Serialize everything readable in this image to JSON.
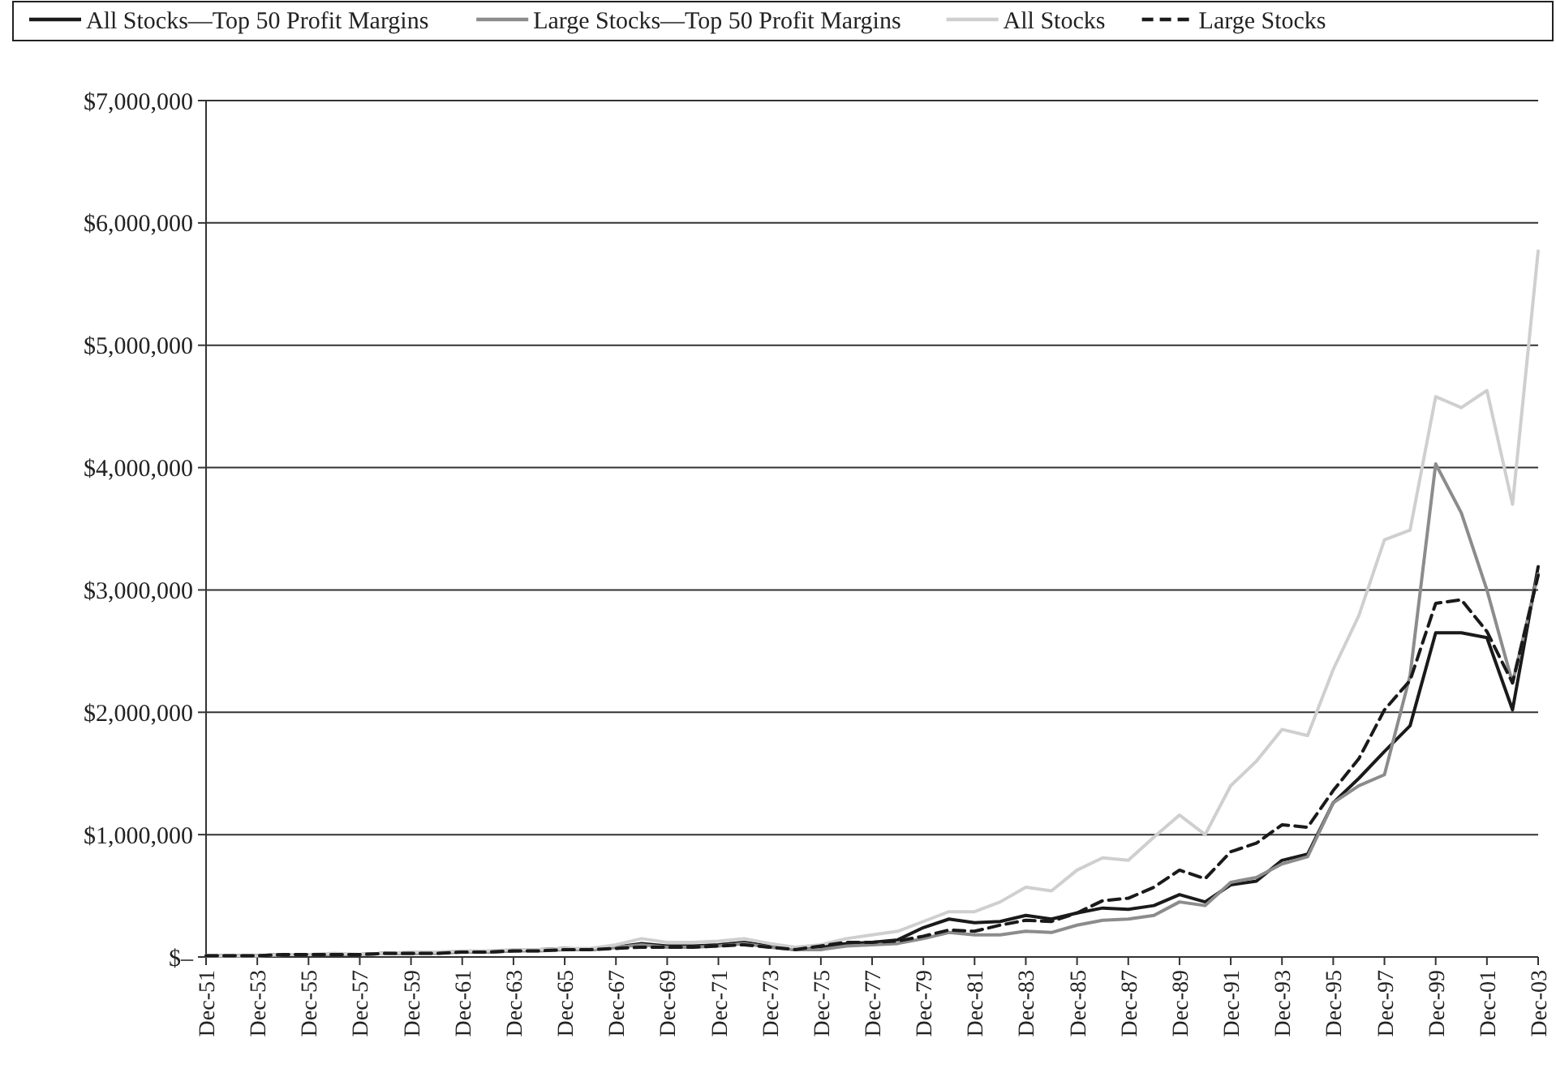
{
  "chart_data": {
    "type": "line",
    "categories": [
      "Dec-51",
      null,
      "Dec-53",
      null,
      "Dec-55",
      null,
      "Dec-57",
      null,
      "Dec-59",
      null,
      "Dec-61",
      null,
      "Dec-63",
      null,
      "Dec-65",
      null,
      "Dec-67",
      null,
      "Dec-69",
      null,
      "Dec-71",
      null,
      "Dec-73",
      null,
      "Dec-75",
      null,
      "Dec-77",
      null,
      "Dec-79",
      null,
      "Dec-81",
      null,
      "Dec-83",
      null,
      "Dec-85",
      null,
      "Dec-87",
      null,
      "Dec-89",
      null,
      "Dec-91",
      null,
      "Dec-93",
      null,
      "Dec-95",
      null,
      "Dec-97",
      null,
      "Dec-99",
      null,
      "Dec-01",
      null,
      "Dec-03"
    ],
    "series": [
      {
        "name": "All Stocks—Top 50 Profit Margins",
        "color": "#1a1a1a",
        "line_style": "solid",
        "values": [
          10000,
          10000,
          10000,
          20000,
          20000,
          20000,
          20000,
          30000,
          30000,
          40000,
          40000,
          40000,
          50000,
          60000,
          70000,
          60000,
          80000,
          110000,
          90000,
          90000,
          100000,
          120000,
          90000,
          60000,
          80000,
          110000,
          120000,
          140000,
          240000,
          310000,
          280000,
          290000,
          340000,
          310000,
          360000,
          400000,
          390000,
          420000,
          510000,
          450000,
          590000,
          620000,
          790000,
          840000,
          1260000,
          1460000,
          1680000,
          1890000,
          2650000,
          2650000,
          2610000,
          2020000,
          3190000
        ]
      },
      {
        "name": "Large Stocks—Top 50 Profit Margins",
        "color": "#8c8c8c",
        "line_style": "solid",
        "values": [
          10000,
          10000,
          10000,
          20000,
          20000,
          20000,
          20000,
          30000,
          30000,
          30000,
          40000,
          40000,
          50000,
          50000,
          60000,
          60000,
          80000,
          100000,
          80000,
          80000,
          90000,
          110000,
          80000,
          60000,
          60000,
          90000,
          100000,
          110000,
          150000,
          200000,
          180000,
          180000,
          210000,
          200000,
          260000,
          300000,
          310000,
          340000,
          450000,
          420000,
          610000,
          650000,
          760000,
          820000,
          1260000,
          1400000,
          1490000,
          2300000,
          4030000,
          3630000,
          3000000,
          2240000,
          3130000
        ]
      },
      {
        "name": "All Stocks",
        "color": "#cfcfcf",
        "line_style": "solid",
        "values": [
          10000,
          10000,
          10000,
          20000,
          20000,
          30000,
          20000,
          30000,
          40000,
          40000,
          50000,
          50000,
          60000,
          60000,
          70000,
          70000,
          100000,
          150000,
          120000,
          120000,
          130000,
          150000,
          110000,
          80000,
          100000,
          150000,
          180000,
          210000,
          290000,
          370000,
          370000,
          450000,
          570000,
          540000,
          710000,
          810000,
          790000,
          980000,
          1160000,
          1000000,
          1400000,
          1600000,
          1860000,
          1810000,
          2350000,
          2790000,
          3410000,
          3490000,
          4580000,
          4490000,
          4630000,
          3700000,
          5770000
        ]
      },
      {
        "name": "Large Stocks",
        "color": "#1a1a1a",
        "line_style": "dashed",
        "values": [
          10000,
          10000,
          10000,
          20000,
          20000,
          20000,
          20000,
          30000,
          30000,
          30000,
          40000,
          40000,
          50000,
          50000,
          60000,
          60000,
          70000,
          80000,
          80000,
          80000,
          90000,
          100000,
          80000,
          60000,
          90000,
          120000,
          120000,
          130000,
          170000,
          220000,
          210000,
          260000,
          300000,
          290000,
          360000,
          460000,
          480000,
          570000,
          710000,
          640000,
          860000,
          930000,
          1080000,
          1060000,
          1360000,
          1620000,
          2020000,
          2260000,
          2890000,
          2920000,
          2660000,
          2240000,
          3120000
        ]
      }
    ],
    "ylim": [
      0,
      7000000
    ],
    "yticks": [
      {
        "value": 0,
        "label": "$–"
      },
      {
        "value": 1000000,
        "label": "$1,000,000"
      },
      {
        "value": 2000000,
        "label": "$2,000,000"
      },
      {
        "value": 3000000,
        "label": "$3,000,000"
      },
      {
        "value": 4000000,
        "label": "$4,000,000"
      },
      {
        "value": 5000000,
        "label": "$5,000,000"
      },
      {
        "value": 6000000,
        "label": "$6,000,000"
      },
      {
        "value": 7000000,
        "label": "$7,000,000"
      }
    ],
    "grid": "y",
    "legend": "top",
    "marker": "none"
  }
}
